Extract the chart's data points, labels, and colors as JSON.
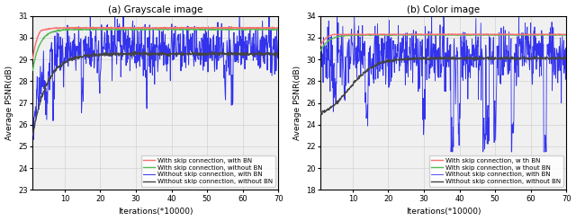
{
  "left": {
    "title": "(a) Grayscale image",
    "xlabel": "Iterations(*10000)",
    "ylabel": "Average PSNR(dB)",
    "xlim": [
      1,
      70
    ],
    "ylim": [
      23,
      31
    ],
    "yticks": [
      23,
      24,
      25,
      26,
      27,
      28,
      29,
      30,
      31
    ],
    "xticks": [
      10,
      20,
      30,
      40,
      50,
      60,
      70
    ],
    "legend": [
      "With skip connection, with BN",
      "With skip connection, without BN",
      "Without skip connection, with BN",
      "Without skip connection, without BN"
    ],
    "colors": [
      "#f87070",
      "#55bb55",
      "#3333ee",
      "#444444"
    ]
  },
  "right": {
    "title": "(b) Color image",
    "xlabel": "Iterations(*10000)",
    "ylabel": "Average PSNR(dB)",
    "xlim": [
      1,
      70
    ],
    "ylim": [
      18,
      34
    ],
    "yticks": [
      18,
      20,
      22,
      24,
      26,
      28,
      30,
      32,
      34
    ],
    "xticks": [
      10,
      20,
      30,
      40,
      50,
      60,
      70
    ],
    "legend": [
      "With skip connection, w th BN",
      "With skip connection, w thout BN",
      "Without skip connection, with BN",
      "Without skip connection, without BN"
    ],
    "colors": [
      "#f87070",
      "#55bb55",
      "#3333ee",
      "#444444"
    ]
  },
  "figsize": [
    6.4,
    2.46
  ],
  "dpi": 100
}
